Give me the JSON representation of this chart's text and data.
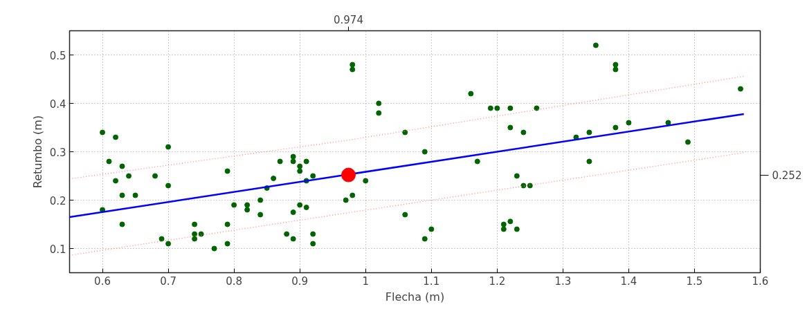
{
  "chart_data": {
    "type": "scatter",
    "xlabel": "Flecha (m)",
    "ylabel": "Retumbo (m)",
    "xlim": [
      0.55,
      1.6
    ],
    "xticks": [
      0.6,
      0.7,
      0.8,
      0.9,
      1,
      1.1,
      1.2,
      1.3,
      1.4,
      1.5,
      1.6
    ],
    "ylim": [
      0.05,
      0.55
    ],
    "yticks": [
      0.1,
      0.2,
      0.3,
      0.4,
      0.5
    ],
    "annotations": [
      "0.974",
      "0.252"
    ],
    "grid": true,
    "series": [
      {
        "marker": "circle",
        "color": "#006400",
        "x": [
          0.6,
          0.62,
          0.7,
          0.61,
          0.63,
          0.62,
          0.64,
          0.68,
          0.7,
          0.63,
          0.65,
          0.6,
          0.63,
          0.69,
          0.7,
          0.74,
          0.74,
          0.74,
          0.75,
          0.77,
          0.79,
          0.79,
          0.79,
          0.8,
          0.82,
          0.82,
          0.84,
          0.84,
          0.85,
          0.86,
          0.87,
          0.88,
          0.89,
          0.89,
          0.89,
          0.89,
          0.9,
          0.9,
          0.9,
          0.91,
          0.91,
          0.91,
          0.92,
          0.92,
          0.92,
          0.97,
          0.98,
          0.98,
          0.98,
          1.0,
          1.02,
          1.02,
          1.06,
          1.06,
          1.09,
          1.09,
          1.1,
          1.16,
          1.17,
          1.19,
          1.2,
          1.22,
          1.22,
          1.21,
          1.21,
          1.22,
          1.23,
          1.23,
          1.24,
          1.24,
          1.25,
          1.26,
          1.32,
          1.34,
          1.34,
          1.35,
          1.38,
          1.38,
          1.38,
          1.4,
          1.46,
          1.49,
          1.57
        ],
        "values": [
          0.34,
          0.33,
          0.31,
          0.28,
          0.27,
          0.24,
          0.25,
          0.25,
          0.23,
          0.21,
          0.21,
          0.18,
          0.15,
          0.12,
          0.11,
          0.15,
          0.13,
          0.12,
          0.13,
          0.1,
          0.26,
          0.15,
          0.11,
          0.19,
          0.19,
          0.18,
          0.2,
          0.17,
          0.225,
          0.245,
          0.28,
          0.13,
          0.29,
          0.28,
          0.175,
          0.12,
          0.27,
          0.26,
          0.19,
          0.28,
          0.24,
          0.185,
          0.25,
          0.13,
          0.11,
          0.2,
          0.21,
          0.48,
          0.47,
          0.24,
          0.4,
          0.38,
          0.34,
          0.17,
          0.3,
          0.12,
          0.14,
          0.42,
          0.28,
          0.39,
          0.39,
          0.39,
          0.35,
          0.15,
          0.14,
          0.156,
          0.25,
          0.14,
          0.34,
          0.23,
          0.23,
          0.39,
          0.33,
          0.34,
          0.28,
          0.52,
          0.48,
          0.47,
          0.35,
          0.36,
          0.36,
          0.32,
          0.43
        ]
      },
      {
        "type": "line",
        "line_style": "dotted",
        "color": "#ff8080",
        "x": [
          0.55,
          0.974,
          1.575
        ],
        "values": [
          0.244,
          0.324,
          0.456
        ]
      },
      {
        "type": "line",
        "line_style": "dotted",
        "color": "#ff8080",
        "x": [
          0.55,
          0.974,
          1.575
        ],
        "values": [
          0.086,
          0.174,
          0.298
        ]
      },
      {
        "type": "line",
        "line_style": "solid",
        "color": "#0000ff",
        "x": [
          0.55,
          1.575
        ],
        "values": [
          0.165,
          0.378
        ]
      },
      {
        "marker": "circle",
        "color": "#ff0000",
        "x": [
          0.974
        ],
        "values": [
          0.252
        ]
      }
    ]
  }
}
